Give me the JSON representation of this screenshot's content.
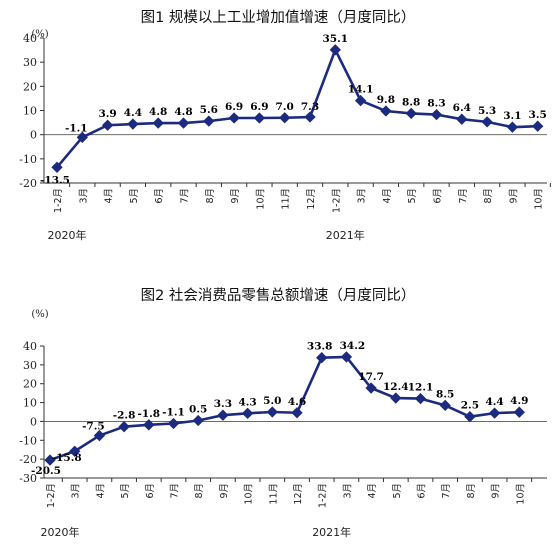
{
  "chart_data": [
    {
      "type": "line",
      "title": "图1   规模以上工业增加值增速（月度同比）",
      "unit": "(%)",
      "ylim": [
        -20,
        40
      ],
      "yticks": [
        -20,
        -10,
        0,
        10,
        20,
        30,
        40
      ],
      "grid": false,
      "categories": [
        "1-2月",
        "3月",
        "4月",
        "5月",
        "6月",
        "7月",
        "8月",
        "9月",
        "10月",
        "11月",
        "12月",
        "1-2月",
        "3月",
        "4月",
        "5月",
        "6月",
        "7月",
        "8月",
        "9月",
        "10月"
      ],
      "year_labels": [
        {
          "label": "2020年",
          "index": 0
        },
        {
          "label": "2021年",
          "index": 11
        }
      ],
      "series": [
        {
          "values": [
            -13.5,
            -1.1,
            3.9,
            4.4,
            4.8,
            4.8,
            5.6,
            6.9,
            6.9,
            7.0,
            7.3,
            35.1,
            14.1,
            9.8,
            8.8,
            8.3,
            6.4,
            5.3,
            3.1,
            3.5
          ],
          "labels": [
            "-13.5",
            "-1.1",
            "3.9",
            "4.4",
            "4.8",
            "4.8",
            "5.6",
            "6.9",
            "6.9",
            "7.0",
            "7.3",
            "35.1",
            "14.1",
            "9.8",
            "8.8",
            "8.3",
            "6.4",
            "5.3",
            "3.1",
            "3.5"
          ]
        }
      ],
      "color": "#1c2a80"
    },
    {
      "type": "line",
      "title": "图2   社会消费品零售总额增速（月度同比）",
      "unit": "(%)",
      "ylim": [
        -30,
        40
      ],
      "yticks": [
        -30,
        -20,
        -10,
        0,
        10,
        20,
        30,
        40
      ],
      "grid": false,
      "categories": [
        "1-2月",
        "3月",
        "4月",
        "5月",
        "6月",
        "7月",
        "8月",
        "9月",
        "10月",
        "11月",
        "12月",
        "1-2月",
        "3月",
        "4月",
        "5月",
        "6月",
        "7月",
        "8月",
        "9月",
        "10月"
      ],
      "year_labels": [
        {
          "label": "2020年",
          "index": 0
        },
        {
          "label": "2021年",
          "index": 11
        }
      ],
      "series": [
        {
          "values": [
            -20.5,
            -15.8,
            -7.5,
            -2.8,
            -1.8,
            -1.1,
            0.5,
            3.3,
            4.3,
            5.0,
            4.6,
            33.8,
            34.2,
            17.7,
            12.4,
            12.1,
            8.5,
            2.5,
            4.4,
            4.9
          ],
          "labels": [
            "-20.5",
            "-15.8",
            "-7.5",
            "-2.8",
            "-1.8",
            "-1.1",
            "0.5",
            "3.3",
            "4.3",
            "5.0",
            "4.6",
            "33.8",
            "34.2",
            "17.7",
            "12.4",
            "12.1",
            "8.5",
            "2.5",
            "4.4",
            "4.9"
          ]
        }
      ],
      "color": "#1c2a80"
    }
  ]
}
